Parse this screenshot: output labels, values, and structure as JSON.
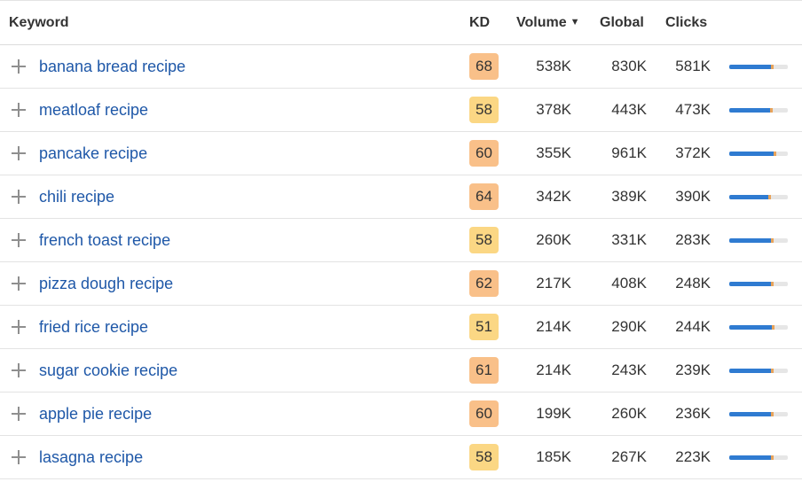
{
  "header": {
    "keyword": "Keyword",
    "kd": "KD",
    "volume": "Volume",
    "volume_sort_icon": "caret-down-icon",
    "global": "Global",
    "clicks": "Clicks"
  },
  "colors": {
    "kd_orange": "#f9c089",
    "kd_yellow": "#fbd784",
    "link": "#1f58a8",
    "bar_blue": "#2f7bd1"
  },
  "rows": [
    {
      "keyword": "banana bread recipe",
      "kd": "68",
      "volume": "538K",
      "global": "830K",
      "clicks": "581K",
      "clicks_ratio": 0.76
    },
    {
      "keyword": "meatloaf recipe",
      "kd": "58",
      "volume": "378K",
      "global": "443K",
      "clicks": "473K",
      "clicks_ratio": 0.74
    },
    {
      "keyword": "pancake recipe",
      "kd": "60",
      "volume": "355K",
      "global": "961K",
      "clicks": "372K",
      "clicks_ratio": 0.8
    },
    {
      "keyword": "chili recipe",
      "kd": "64",
      "volume": "342K",
      "global": "389K",
      "clicks": "390K",
      "clicks_ratio": 0.71
    },
    {
      "keyword": "french toast recipe",
      "kd": "58",
      "volume": "260K",
      "global": "331K",
      "clicks": "283K",
      "clicks_ratio": 0.76
    },
    {
      "keyword": "pizza dough recipe",
      "kd": "62",
      "volume": "217K",
      "global": "408K",
      "clicks": "248K",
      "clicks_ratio": 0.76
    },
    {
      "keyword": "fried rice recipe",
      "kd": "51",
      "volume": "214K",
      "global": "290K",
      "clicks": "244K",
      "clicks_ratio": 0.77
    },
    {
      "keyword": "sugar cookie recipe",
      "kd": "61",
      "volume": "214K",
      "global": "243K",
      "clicks": "239K",
      "clicks_ratio": 0.76
    },
    {
      "keyword": "apple pie recipe",
      "kd": "60",
      "volume": "199K",
      "global": "260K",
      "clicks": "236K",
      "clicks_ratio": 0.76
    },
    {
      "keyword": "lasagna recipe",
      "kd": "58",
      "volume": "185K",
      "global": "267K",
      "clicks": "223K",
      "clicks_ratio": 0.76
    }
  ]
}
